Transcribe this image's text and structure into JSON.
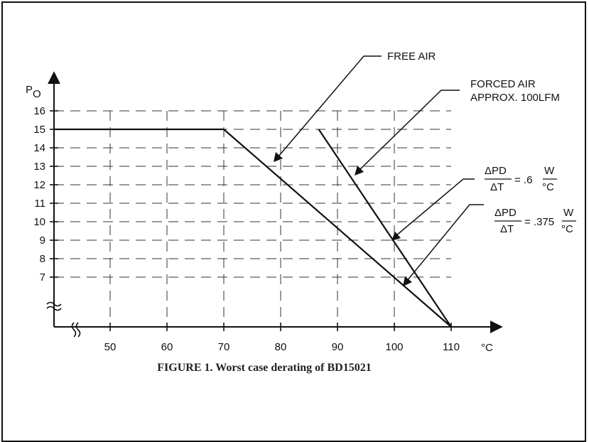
{
  "chart_data": {
    "type": "line",
    "title": "FIGURE 1. Worst case derating of BD15021",
    "ylabel": "P",
    "ylabel_sub": "O",
    "xlabel": "°C",
    "xlim": [
      40,
      110
    ],
    "ylim": [
      4,
      16
    ],
    "x_ticks": [
      50,
      60,
      70,
      80,
      90,
      100,
      110
    ],
    "y_ticks": [
      7,
      8,
      9,
      10,
      11,
      12,
      13,
      14,
      15,
      16
    ],
    "grid": true,
    "axis_break": true,
    "series": [
      {
        "name": "FREE AIR",
        "x": [
          40,
          70,
          110
        ],
        "y": [
          15,
          15,
          0
        ]
      },
      {
        "name": "FORCED AIR APPROX. 100LFM",
        "x": [
          86.7,
          110
        ],
        "y": [
          15,
          0
        ]
      }
    ],
    "annotations": [
      {
        "id": "free_air",
        "text": "FREE AIR"
      },
      {
        "id": "forced_air",
        "lines": [
          "FORCED AIR",
          "APPROX. 100LFM"
        ]
      },
      {
        "id": "slope_06",
        "num": "ΔPD",
        "den": "ΔT",
        "eq": "= .6",
        "unit_num": "W",
        "unit_den": "°C"
      },
      {
        "id": "slope_0375",
        "num": "ΔPD",
        "den": "ΔT",
        "eq": "= .375",
        "unit_num": "W",
        "unit_den": "°C"
      }
    ]
  }
}
